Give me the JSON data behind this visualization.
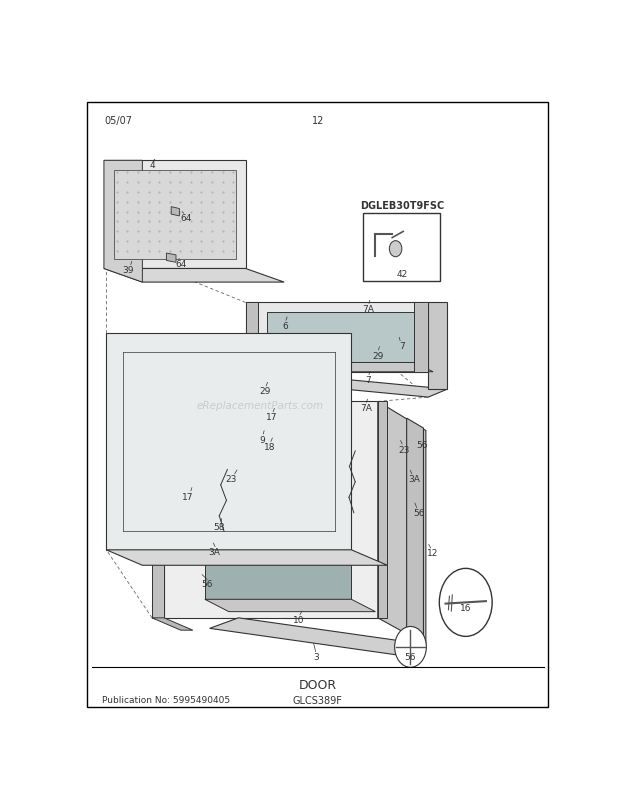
{
  "title": "DOOR",
  "pub_no": "Publication No: 5995490405",
  "model": "GLCS389F",
  "footer_left": "05/07",
  "footer_center": "12",
  "diagram_code": "DGLEB30T9FSC",
  "bg_color": "#ffffff",
  "border_color": "#000000",
  "line_color": "#333333",
  "text_color": "#333333",
  "watermark": "eReplacementParts.com"
}
